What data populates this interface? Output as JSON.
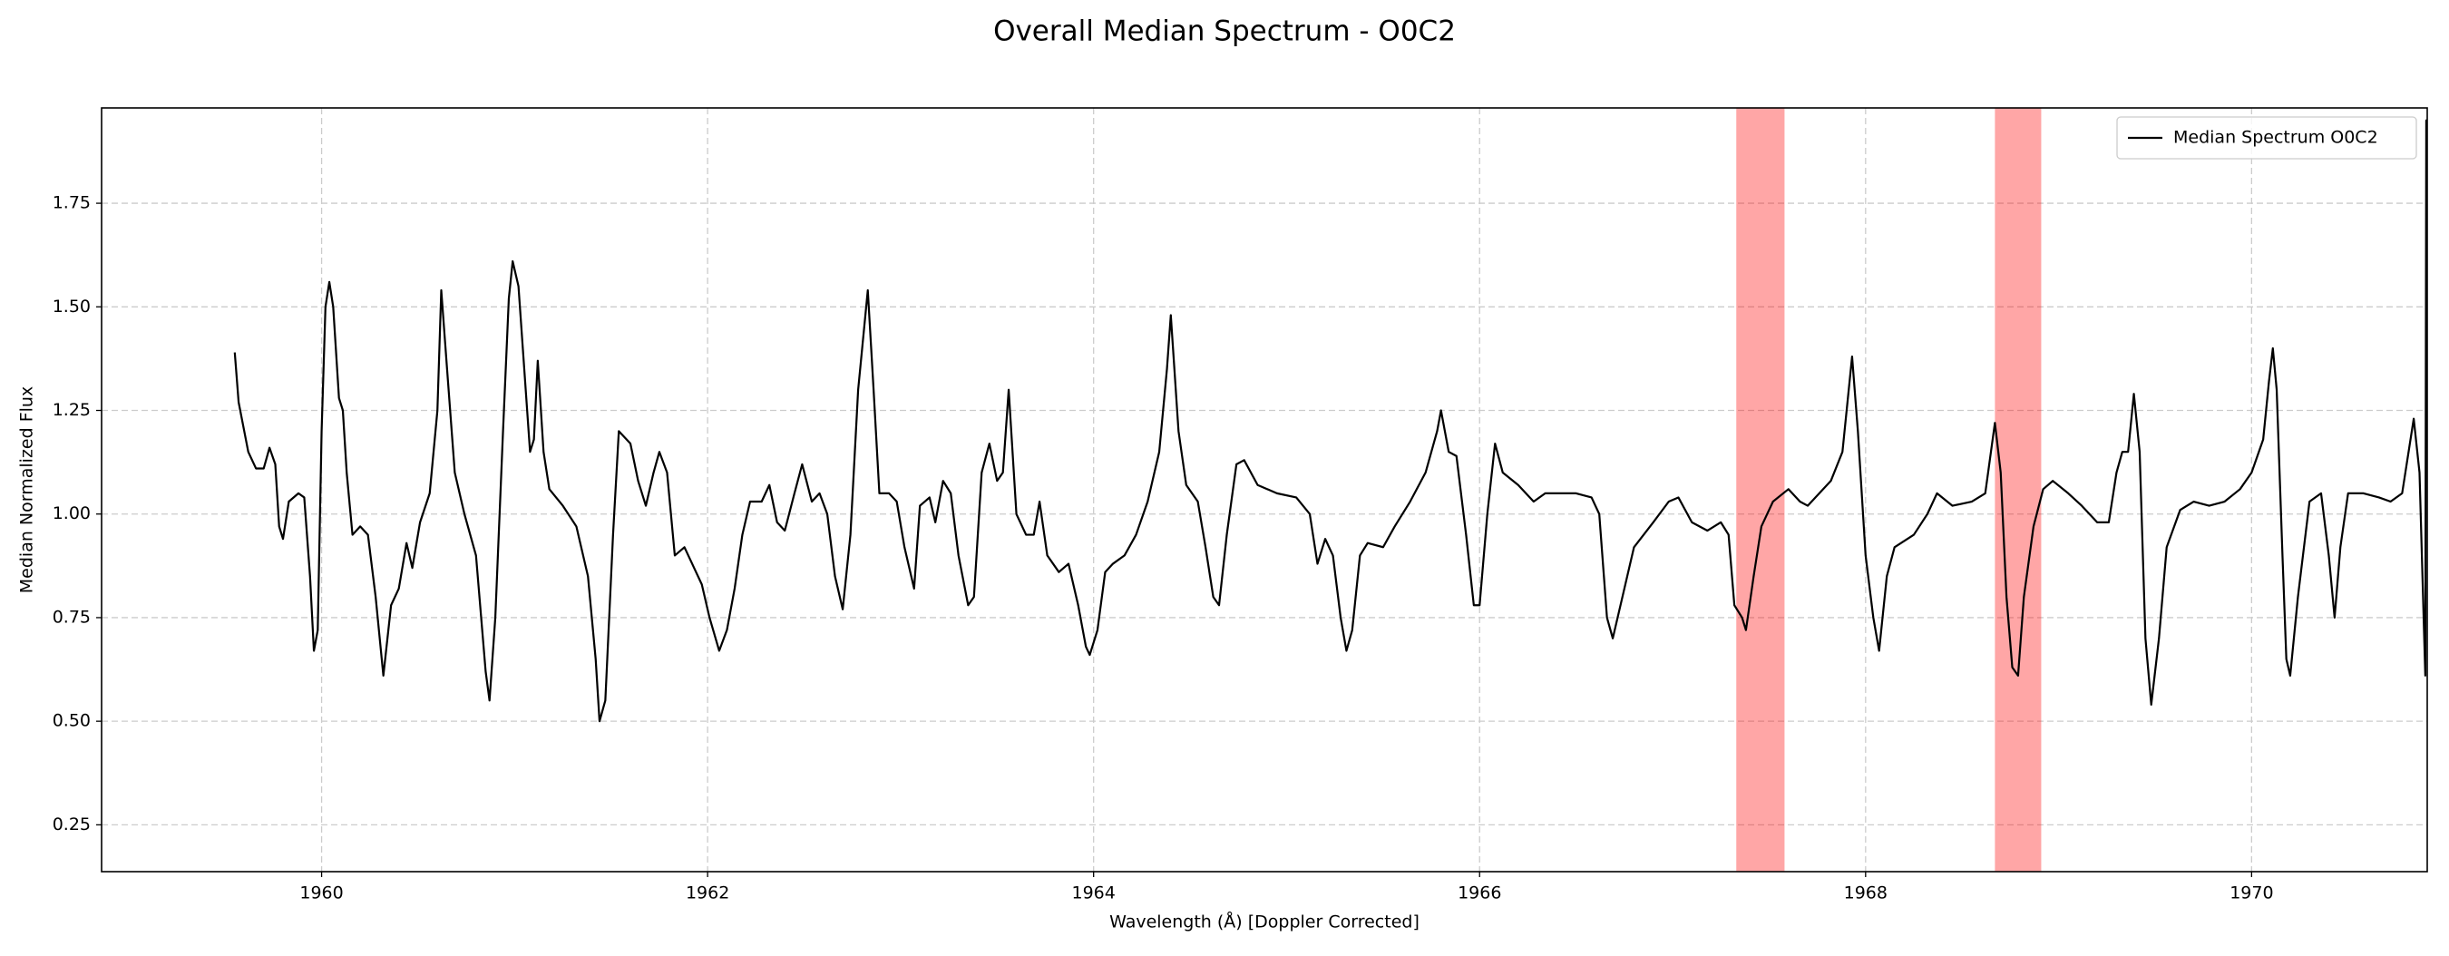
{
  "chart_data": {
    "type": "line",
    "title": "Overall Median Spectrum - O0C2",
    "x_label": "Wavelength (Å) [Doppler Corrected]",
    "y_label": "Median Normalized Flux",
    "xlim": [
      1958.86,
      1970.91
    ],
    "ylim": [
      0.137,
      1.98
    ],
    "xticks": [
      1960,
      1962,
      1964,
      1966,
      1968,
      1970
    ],
    "yticks": [
      0.25,
      {
        "value": 0.5,
        "label": "0.50"
      },
      0.75,
      {
        "value": 1.0,
        "label": "1.00"
      },
      1.25,
      {
        "value": 1.5,
        "label": "1.50"
      },
      1.75
    ],
    "grid": true,
    "legend": "upper right",
    "spans": [
      [
        1967.33,
        1967.58
      ],
      [
        1968.67,
        1968.91
      ]
    ],
    "span_color": "#ff0000",
    "x": [
      1959.55,
      1959.57,
      1959.62,
      1959.66,
      1959.7,
      1959.73,
      1959.76,
      1959.78,
      1959.8,
      1959.83,
      1959.88,
      1959.91,
      1959.94,
      1959.96,
      1959.98,
      1960.0,
      1960.02,
      1960.04,
      1960.06,
      1960.09,
      1960.11,
      1960.13,
      1960.16,
      1960.2,
      1960.24,
      1960.28,
      1960.32,
      1960.36,
      1960.4,
      1960.44,
      1960.47,
      1960.51,
      1960.56,
      1960.6,
      1960.62,
      1960.65,
      1960.69,
      1960.74,
      1960.8,
      1960.85,
      1960.87,
      1960.9,
      1960.94,
      1960.97,
      1960.99,
      1961.02,
      1961.05,
      1961.08,
      1961.1,
      1961.12,
      1961.15,
      1961.18,
      1961.25,
      1961.32,
      1961.38,
      1961.42,
      1961.44,
      1961.47,
      1961.51,
      1961.54,
      1961.6,
      1961.64,
      1961.68,
      1961.72,
      1961.75,
      1961.79,
      1961.83,
      1961.88,
      1961.92,
      1961.97,
      1962.01,
      1962.06,
      1962.1,
      1962.14,
      1962.18,
      1962.22,
      1962.28,
      1962.32,
      1962.36,
      1962.4,
      1962.45,
      1962.49,
      1962.54,
      1962.58,
      1962.62,
      1962.66,
      1962.7,
      1962.74,
      1962.78,
      1962.83,
      1962.86,
      1962.89,
      1962.94,
      1962.98,
      1963.02,
      1963.07,
      1963.1,
      1963.15,
      1963.18,
      1963.22,
      1963.26,
      1963.3,
      1963.35,
      1963.38,
      1963.42,
      1963.46,
      1963.5,
      1963.53,
      1963.56,
      1963.6,
      1963.65,
      1963.69,
      1963.72,
      1963.76,
      1963.82,
      1963.87,
      1963.92,
      1963.96,
      1963.98,
      1964.02,
      1964.06,
      1964.1,
      1964.16,
      1964.22,
      1964.28,
      1964.34,
      1964.38,
      1964.4,
      1964.44,
      1964.48,
      1964.54,
      1964.58,
      1964.62,
      1964.65,
      1964.69,
      1964.74,
      1964.78,
      1964.85,
      1964.95,
      1965.05,
      1965.12,
      1965.16,
      1965.2,
      1965.24,
      1965.28,
      1965.31,
      1965.34,
      1965.38,
      1965.42,
      1965.5,
      1965.56,
      1965.64,
      1965.72,
      1965.78,
      1965.8,
      1965.84,
      1965.88,
      1965.93,
      1965.97,
      1966.0,
      1966.04,
      1966.08,
      1966.12,
      1966.2,
      1966.28,
      1966.34,
      1966.42,
      1966.5,
      1966.58,
      1966.62,
      1966.66,
      1966.69,
      1966.74,
      1966.8,
      1966.9,
      1966.98,
      1967.03,
      1967.1,
      1967.18,
      1967.25,
      1967.29,
      1967.32,
      1967.36,
      1967.38,
      1967.42,
      1967.46,
      1967.52,
      1967.6,
      1967.66,
      1967.7,
      1967.76,
      1967.82,
      1967.88,
      1967.93,
      1967.96,
      1968.0,
      1968.04,
      1968.07,
      1968.11,
      1968.15,
      1968.25,
      1968.32,
      1968.37,
      1968.45,
      1968.55,
      1968.62,
      1968.67,
      1968.7,
      1968.73,
      1968.76,
      1968.79,
      1968.82,
      1968.87,
      1968.92,
      1968.97,
      1969.05,
      1969.12,
      1969.2,
      1969.26,
      1969.3,
      1969.33,
      1969.36,
      1969.39,
      1969.42,
      1969.45,
      1969.48,
      1969.52,
      1969.56,
      1969.63,
      1969.7,
      1969.78,
      1969.86,
      1969.94,
      1970.0,
      1970.06,
      1970.09,
      1970.11,
      1970.13,
      1970.16,
      1970.18,
      1970.2,
      1970.24,
      1970.3,
      1970.36,
      1970.4,
      1970.43,
      1970.46,
      1970.5,
      1970.58,
      1970.66,
      1970.72,
      1970.78,
      1970.84,
      1970.87,
      1970.9,
      1970.905,
      1970.91
    ],
    "series": [
      {
        "name": "Median Spectrum O0C2",
        "color": "#000000",
        "values": [
          1.39,
          1.27,
          1.15,
          1.11,
          1.11,
          1.16,
          1.12,
          0.97,
          0.94,
          1.03,
          1.05,
          1.04,
          0.85,
          0.67,
          0.72,
          1.2,
          1.5,
          1.56,
          1.5,
          1.28,
          1.25,
          1.1,
          0.95,
          0.97,
          0.95,
          0.8,
          0.61,
          0.78,
          0.82,
          0.93,
          0.87,
          0.98,
          1.05,
          1.25,
          1.54,
          1.35,
          1.1,
          1.0,
          0.9,
          0.62,
          0.55,
          0.75,
          1.2,
          1.52,
          1.61,
          1.55,
          1.35,
          1.15,
          1.18,
          1.37,
          1.15,
          1.06,
          1.02,
          0.97,
          0.85,
          0.65,
          0.5,
          0.55,
          0.95,
          1.2,
          1.17,
          1.08,
          1.02,
          1.1,
          1.15,
          1.1,
          0.9,
          0.92,
          0.88,
          0.83,
          0.75,
          0.67,
          0.72,
          0.82,
          0.95,
          1.03,
          1.03,
          1.07,
          0.98,
          0.96,
          1.05,
          1.12,
          1.03,
          1.05,
          1.0,
          0.85,
          0.77,
          0.95,
          1.3,
          1.54,
          1.3,
          1.05,
          1.05,
          1.03,
          0.92,
          0.82,
          1.02,
          1.04,
          0.98,
          1.08,
          1.05,
          0.9,
          0.78,
          0.8,
          1.1,
          1.17,
          1.08,
          1.1,
          1.3,
          1.0,
          0.95,
          0.95,
          1.03,
          0.9,
          0.86,
          0.88,
          0.78,
          0.68,
          0.66,
          0.72,
          0.86,
          0.88,
          0.9,
          0.95,
          1.03,
          1.15,
          1.35,
          1.48,
          1.2,
          1.07,
          1.03,
          0.92,
          0.8,
          0.78,
          0.95,
          1.12,
          1.13,
          1.07,
          1.05,
          1.04,
          1.0,
          0.88,
          0.94,
          0.9,
          0.75,
          0.67,
          0.72,
          0.9,
          0.93,
          0.92,
          0.97,
          1.03,
          1.1,
          1.2,
          1.25,
          1.15,
          1.14,
          0.95,
          0.78,
          0.78,
          1.0,
          1.17,
          1.1,
          1.07,
          1.03,
          1.05,
          1.05,
          1.05,
          1.04,
          1.0,
          0.75,
          0.7,
          0.8,
          0.92,
          0.98,
          1.03,
          1.04,
          0.98,
          0.96,
          0.98,
          0.95,
          0.78,
          0.75,
          0.72,
          0.85,
          0.97,
          1.03,
          1.06,
          1.03,
          1.02,
          1.05,
          1.08,
          1.15,
          1.38,
          1.2,
          0.9,
          0.75,
          0.67,
          0.85,
          0.92,
          0.95,
          1.0,
          1.05,
          1.02,
          1.03,
          1.05,
          1.22,
          1.1,
          0.8,
          0.63,
          0.61,
          0.8,
          0.97,
          1.06,
          1.08,
          1.05,
          1.02,
          0.98,
          0.98,
          1.1,
          1.15,
          1.15,
          1.29,
          1.15,
          0.7,
          0.54,
          0.7,
          0.92,
          1.01,
          1.03,
          1.02,
          1.03,
          1.06,
          1.1,
          1.18,
          1.32,
          1.4,
          1.3,
          0.9,
          0.65,
          0.61,
          0.8,
          1.03,
          1.05,
          0.9,
          0.75,
          0.92,
          1.05,
          1.05,
          1.04,
          1.03,
          1.05,
          1.23,
          1.1,
          0.61,
          1.95,
          1.7
        ]
      }
    ]
  }
}
